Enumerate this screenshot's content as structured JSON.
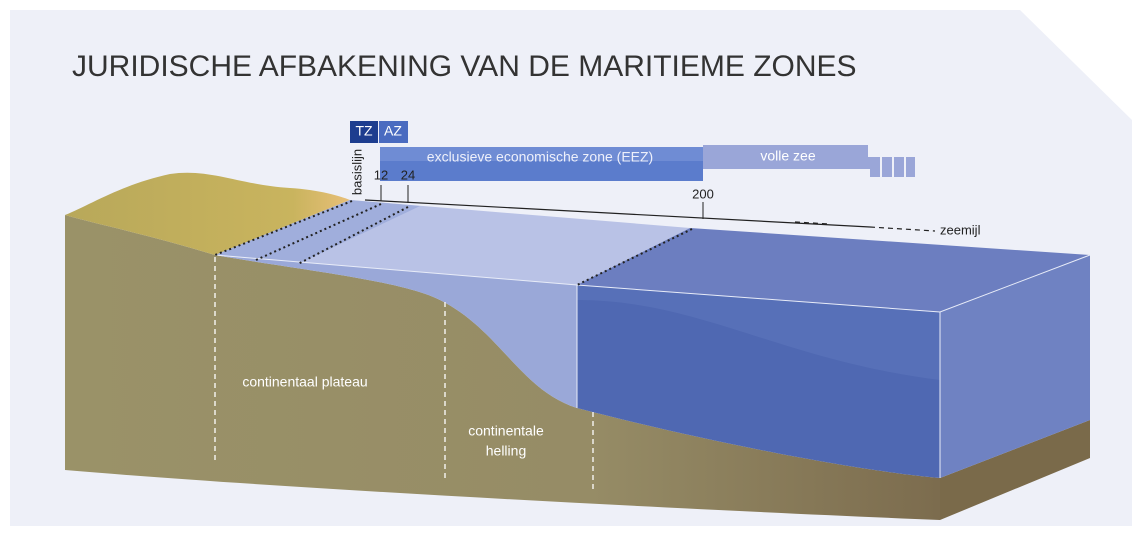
{
  "header": {
    "title": "JURIDISCHE AFBAKENING VAN DE MARITIEME ZONES"
  },
  "zones": {
    "territorial": "TZ",
    "contiguous": "AZ",
    "eez": "exclusieve economische zone (EEZ)",
    "high_seas": "volle zee"
  },
  "scale": {
    "baseline": "basislijn",
    "marks": [
      "12",
      "24",
      "200"
    ],
    "unit": "zeemijl"
  },
  "seabed": {
    "plateau": "continentaal plateau",
    "slope_line1": "continentale",
    "slope_line2": "helling"
  }
}
